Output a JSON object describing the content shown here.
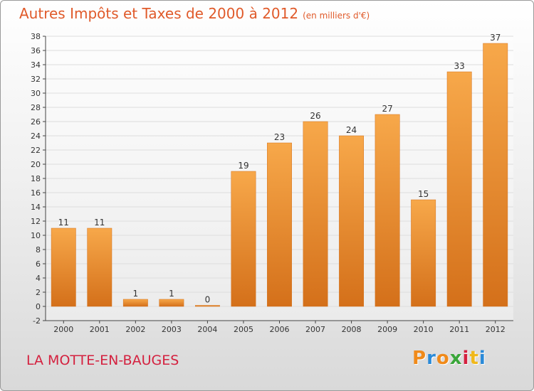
{
  "header": {
    "title": "Autres Impôts et Taxes de 2000 à 2012",
    "unit": "(en milliers d'€)"
  },
  "footer": {
    "location": "LA MOTTE-EN-BAUGES",
    "logo_text": "Proxiti",
    "logo_colors": [
      "#f08a1a",
      "#2a8ad8",
      "#f08a1a",
      "#3aa63a",
      "#d4213f",
      "#f0b81a",
      "#2a8ad8"
    ]
  },
  "colors": {
    "bar": "#f0922e",
    "bar_light": "#f7a84a",
    "bar_dark": "#d4701a",
    "axis": "#444444",
    "grid": "#dddddd",
    "title": "#e05a2a",
    "location": "#d4213f"
  },
  "chart_data": {
    "type": "bar",
    "title": "Autres Impôts et Taxes de 2000 à 2012",
    "categories": [
      "2000",
      "2001",
      "2002",
      "2003",
      "2004",
      "2005",
      "2006",
      "2007",
      "2008",
      "2009",
      "2010",
      "2011",
      "2012"
    ],
    "values": [
      11,
      11,
      1,
      1,
      0,
      19,
      23,
      26,
      24,
      27,
      15,
      33,
      37
    ],
    "data_labels": [
      "11",
      "11",
      "1",
      "1",
      "0",
      "19",
      "23",
      "26",
      "24",
      "27",
      "15",
      "33",
      "37"
    ],
    "ylim": [
      -2,
      38
    ],
    "yticks": [
      -2,
      0,
      2,
      4,
      6,
      8,
      10,
      12,
      14,
      16,
      18,
      20,
      22,
      24,
      26,
      28,
      30,
      32,
      34,
      36,
      38
    ],
    "xlabel": "",
    "ylabel": "",
    "grid": true
  }
}
